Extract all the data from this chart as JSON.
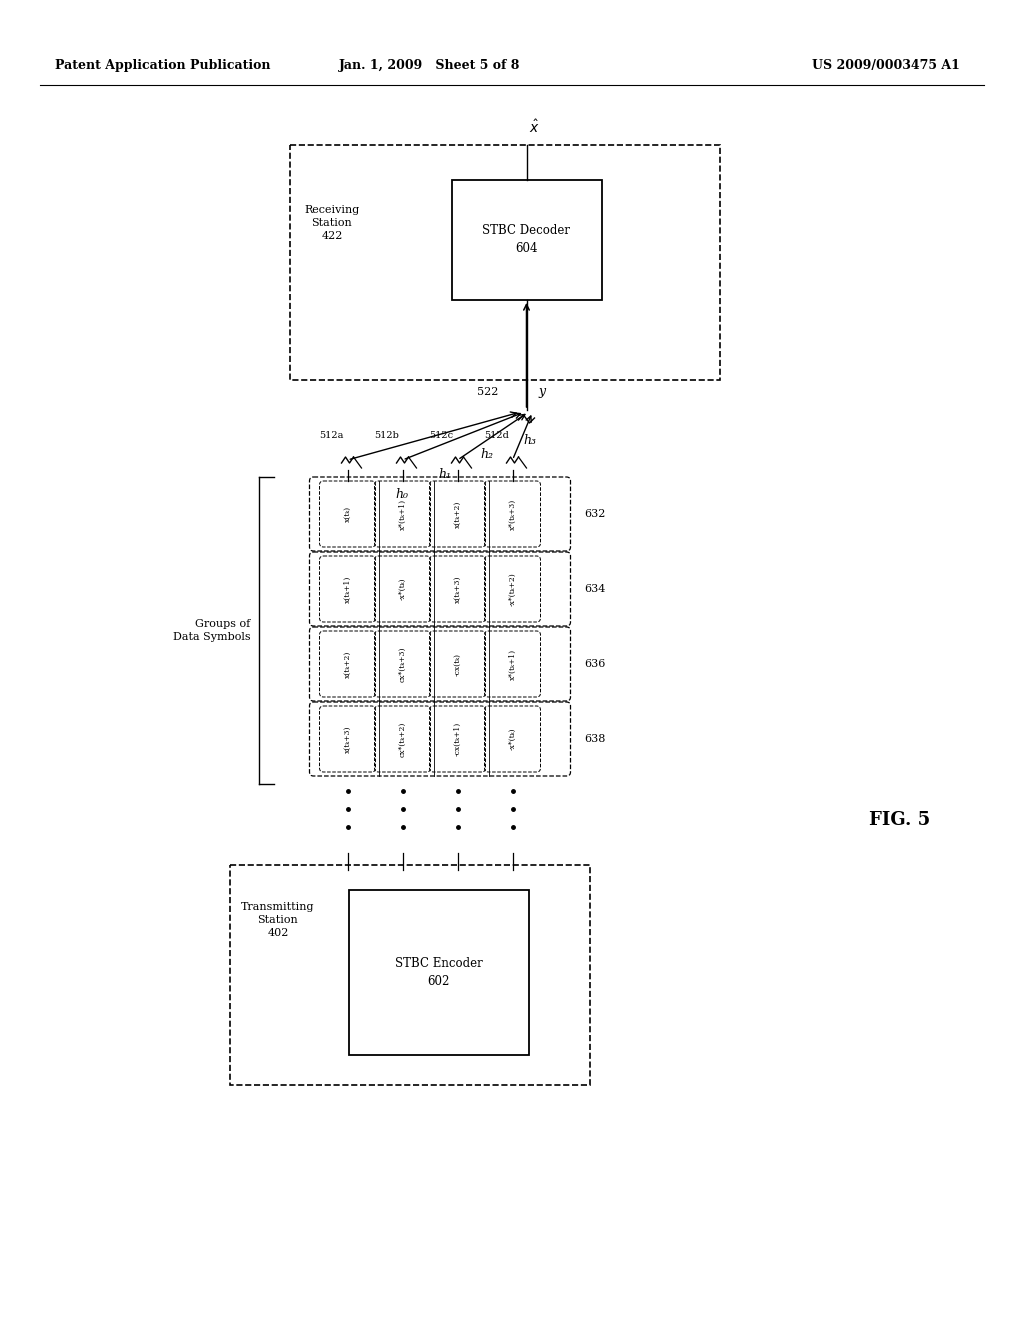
{
  "bg_color": "#ffffff",
  "header_left": "Patent Application Publication",
  "header_mid": "Jan. 1, 2009   Sheet 5 of 8",
  "header_right": "US 2009/0003475 A1",
  "fig_label": "FIG. 5",
  "rx_station_label": "Receiving\nStation\n422",
  "tx_station_label": "Transmitting\nStation\n402",
  "tx_encoder_label": "STBC Encoder\n602",
  "rx_decoder_label": "STBC Decoder\n604",
  "antenna_labels": [
    "512a",
    "512b",
    "512c",
    "512d"
  ],
  "channel_labels": [
    "h₀",
    "h₁",
    "h₂",
    "h₃"
  ],
  "rx_antenna_label": "522",
  "y_label": "y",
  "row_labels": [
    "632",
    "634",
    "636",
    "638"
  ],
  "cell_texts": [
    [
      "x(tₖ)",
      "x*(tₖ+1)",
      "x(tₖ+2)",
      "x*(tₖ+3)"
    ],
    [
      "x(tₖ+1)",
      "-x*(tₖ)",
      "x(tₖ+3)",
      "-x*(tₖ+2)"
    ],
    [
      "x(tₖ+2)",
      "cx*(tₖ+3)",
      "-cx(tₖ)",
      "x*(tₖ+1)"
    ],
    [
      "x(tₖ+3)",
      "cx*(tₖ+2)",
      "-cx(tₖ+1)",
      "-x*(tₖ)"
    ]
  ]
}
